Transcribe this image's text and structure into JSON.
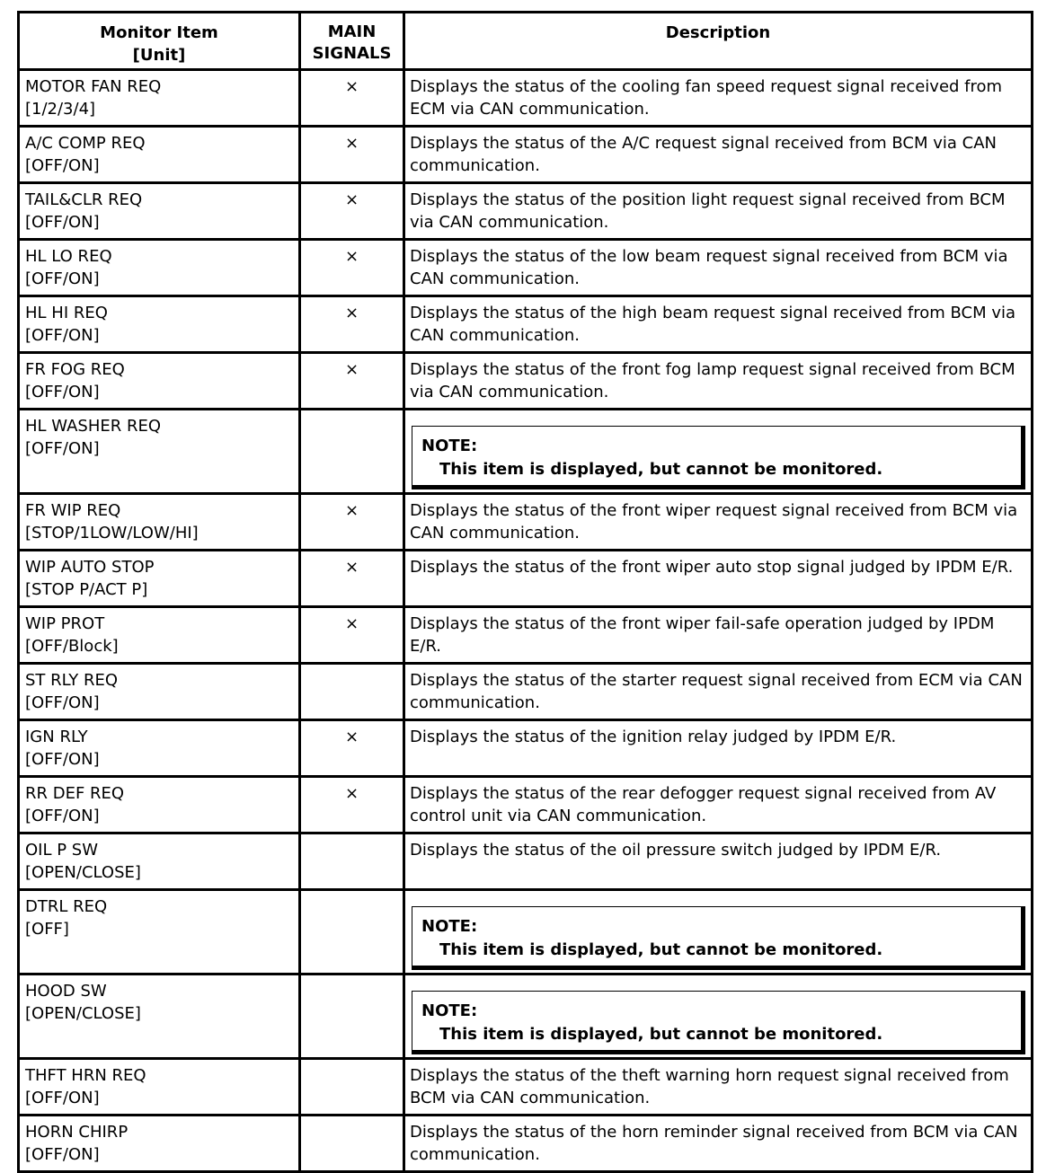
{
  "header": {
    "item_line1": "Monitor Item",
    "item_line2": "[Unit]",
    "main_line1": "MAIN",
    "main_line2": "SIGNALS",
    "description": "Description"
  },
  "note": {
    "title": "NOTE:",
    "text": "This item is displayed, but cannot be monitored."
  },
  "rows": [
    {
      "item": "MOTOR FAN REQ",
      "unit": "[1/2/3/4]",
      "main": "×",
      "desc": "Displays the status of the cooling fan speed request signal received from ECM via CAN communication."
    },
    {
      "item": "A/C COMP REQ",
      "unit": "[OFF/ON]",
      "main": "×",
      "desc": "Displays the status of the A/C request signal received from BCM via CAN communication."
    },
    {
      "item": "TAIL&CLR REQ",
      "unit": "[OFF/ON]",
      "main": "×",
      "desc": "Displays the status of the position light request signal received from BCM via CAN communication."
    },
    {
      "item": "HL LO REQ",
      "unit": "[OFF/ON]",
      "main": "×",
      "desc": "Displays the status of the low beam request signal received from BCM via CAN communication."
    },
    {
      "item": "HL HI REQ",
      "unit": "[OFF/ON]",
      "main": "×",
      "desc": "Displays the status of the high beam request signal received from BCM via CAN communication."
    },
    {
      "item": "FR FOG REQ",
      "unit": "[OFF/ON]",
      "main": "×",
      "desc": "Displays the status of the front fog lamp request signal received from BCM via CAN communication."
    },
    {
      "item": "HL WASHER REQ",
      "unit": "[OFF/ON]",
      "main": "",
      "note": true
    },
    {
      "item": "FR WIP REQ",
      "unit": "[STOP/1LOW/LOW/HI]",
      "main": "×",
      "desc": "Displays the status of the front wiper request signal received from BCM via CAN communication."
    },
    {
      "item": "WIP AUTO STOP",
      "unit": "[STOP P/ACT P]",
      "main": "×",
      "desc": "Displays the status of the front wiper auto stop signal judged by IPDM E/R."
    },
    {
      "item": "WIP PROT",
      "unit": "[OFF/Block]",
      "main": "×",
      "desc": "Displays the status of the front wiper fail-safe operation judged by IPDM E/R."
    },
    {
      "item": "ST RLY REQ",
      "unit": "[OFF/ON]",
      "main": "",
      "desc": "Displays the status of the starter request signal received from ECM via CAN communication."
    },
    {
      "item": "IGN RLY",
      "unit": "[OFF/ON]",
      "main": "×",
      "desc": "Displays the status of the ignition relay judged by IPDM E/R."
    },
    {
      "item": "RR DEF REQ",
      "unit": "[OFF/ON]",
      "main": "×",
      "desc": "Displays the status of the rear defogger request signal received from AV control unit via CAN communication."
    },
    {
      "item": "OIL P SW",
      "unit": "[OPEN/CLOSE]",
      "main": "",
      "desc": "Displays the status of the oil pressure switch judged by IPDM E/R."
    },
    {
      "item": "DTRL REQ",
      "unit": "[OFF]",
      "main": "",
      "note": true
    },
    {
      "item": "HOOD SW",
      "unit": "[OPEN/CLOSE]",
      "main": "",
      "note": true
    },
    {
      "item": "THFT HRN REQ",
      "unit": "[OFF/ON]",
      "main": "",
      "desc": "Displays the status of the theft warning horn request signal received from BCM via CAN communication."
    },
    {
      "item": "HORN CHIRP",
      "unit": "[OFF/ON]",
      "main": "",
      "desc": "Displays the status of the horn reminder signal received from BCM via CAN communication."
    }
  ]
}
